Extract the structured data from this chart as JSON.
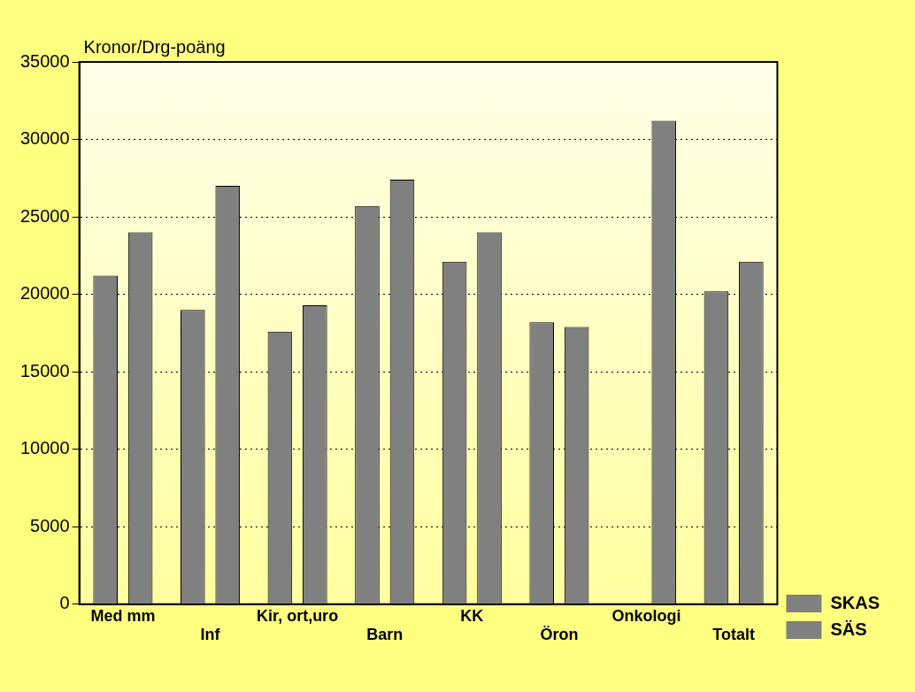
{
  "chart_data": {
    "type": "bar",
    "ylabel": "Kronor/Drg-poäng",
    "categories": [
      "Med mm",
      "Inf",
      "Kir, ort,uro",
      "Barn",
      "KK",
      "Öron",
      "Onkologi",
      "Totalt"
    ],
    "series": [
      {
        "name": "SKAS",
        "color": "#808080",
        "values": [
          21200,
          19000,
          17600,
          25700,
          22100,
          18200,
          null,
          20200
        ]
      },
      {
        "name": "SÄS",
        "color": "#808080",
        "values": [
          24000,
          27000,
          19300,
          27400,
          24000,
          17900,
          31200,
          22100
        ]
      }
    ],
    "ylim": [
      0,
      35000
    ],
    "yticks": [
      0,
      5000,
      10000,
      15000,
      20000,
      25000,
      30000,
      35000
    ],
    "grid": "y",
    "legend": "right"
  }
}
